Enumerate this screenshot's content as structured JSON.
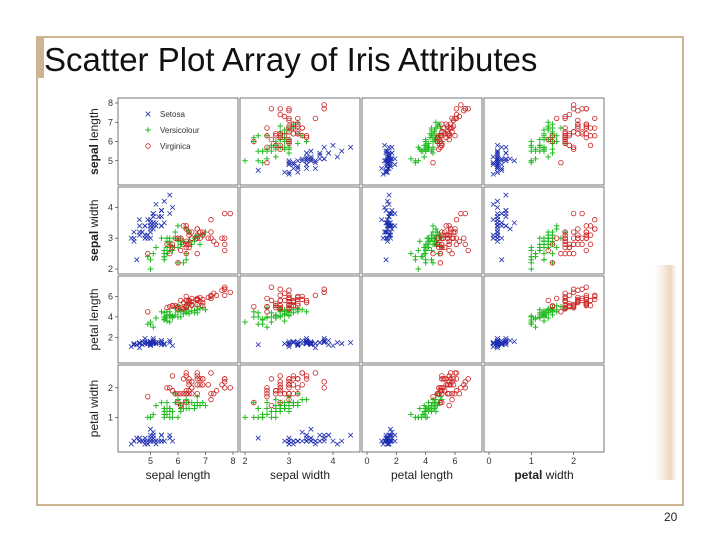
{
  "slide": {
    "title": "Scatter Plot Array of Iris Attributes",
    "page_number": "20"
  },
  "colors": {
    "setosa": "#1f2fb0",
    "versicolour": "#22bb22",
    "virginica": "#cc2222",
    "frame": "#cdb592"
  },
  "chart_data": {
    "type": "scatter",
    "attributes": [
      "sepal length",
      "sepal width",
      "petal length",
      "petal width"
    ],
    "bold_labels": [
      {
        "bold": "sepal",
        "rest": " length"
      },
      {
        "bold": "sepal",
        "rest": " width"
      },
      {
        "bold": "petal",
        "rest": " length"
      },
      {
        "bold": "petal",
        "rest": " width"
      }
    ],
    "ranges": [
      [
        4,
        8
      ],
      [
        2,
        4.5
      ],
      [
        0,
        7.5
      ],
      [
        0,
        2.6
      ]
    ],
    "ticks": {
      "x": [
        [
          {
            "v": 5,
            "t": "5"
          },
          {
            "v": 6,
            "t": "6"
          },
          {
            "v": 7,
            "t": "7"
          },
          {
            "v": 8,
            "t": "8"
          }
        ],
        [
          {
            "v": 2,
            "t": "2"
          },
          {
            "v": 3,
            "t": "3"
          },
          {
            "v": 4,
            "t": "4"
          }
        ],
        [
          {
            "v": 0,
            "t": "0"
          },
          {
            "v": 2,
            "t": "2"
          },
          {
            "v": 4,
            "t": "4"
          },
          {
            "v": 6,
            "t": "6"
          }
        ],
        [
          {
            "v": 0,
            "t": "0"
          },
          {
            "v": 1,
            "t": "1"
          },
          {
            "v": 2,
            "t": "2"
          }
        ]
      ],
      "y": [
        [
          {
            "v": 5,
            "t": "5"
          },
          {
            "v": 6,
            "t": "6"
          },
          {
            "v": 7,
            "t": "7"
          },
          {
            "v": 8,
            "t": "8"
          }
        ],
        [
          {
            "v": 2,
            "t": "2"
          },
          {
            "v": 3,
            "t": "3"
          },
          {
            "v": 4,
            "t": "4"
          }
        ],
        [
          {
            "v": 2,
            "t": "2"
          },
          {
            "v": 4,
            "t": "4"
          },
          {
            "v": 6,
            "t": "6"
          }
        ],
        [
          {
            "v": 1,
            "t": "1"
          },
          {
            "v": 2,
            "t": "2"
          }
        ]
      ]
    },
    "legend": [
      {
        "name": "Setosa",
        "marker": "x"
      },
      {
        "name": "Versicolour",
        "marker": "+"
      },
      {
        "name": "Virginica",
        "marker": "o"
      }
    ],
    "legend_position": "top-left",
    "grid": false,
    "series": [
      {
        "species": "setosa",
        "marker": "x",
        "points": [
          [
            5.1,
            3.5,
            1.4,
            0.2
          ],
          [
            4.9,
            3.0,
            1.4,
            0.2
          ],
          [
            4.7,
            3.2,
            1.3,
            0.2
          ],
          [
            4.6,
            3.1,
            1.5,
            0.2
          ],
          [
            5.0,
            3.6,
            1.4,
            0.2
          ],
          [
            5.4,
            3.9,
            1.7,
            0.4
          ],
          [
            4.6,
            3.4,
            1.4,
            0.3
          ],
          [
            5.0,
            3.4,
            1.5,
            0.2
          ],
          [
            4.4,
            2.9,
            1.4,
            0.2
          ],
          [
            4.9,
            3.1,
            1.5,
            0.1
          ],
          [
            5.4,
            3.7,
            1.5,
            0.2
          ],
          [
            4.8,
            3.4,
            1.6,
            0.2
          ],
          [
            4.8,
            3.0,
            1.4,
            0.1
          ],
          [
            4.3,
            3.0,
            1.1,
            0.1
          ],
          [
            5.8,
            4.0,
            1.2,
            0.2
          ],
          [
            5.7,
            4.4,
            1.5,
            0.4
          ],
          [
            5.4,
            3.9,
            1.3,
            0.4
          ],
          [
            5.1,
            3.5,
            1.4,
            0.3
          ],
          [
            5.7,
            3.8,
            1.7,
            0.3
          ],
          [
            5.1,
            3.8,
            1.5,
            0.3
          ],
          [
            5.4,
            3.4,
            1.7,
            0.2
          ],
          [
            5.1,
            3.7,
            1.5,
            0.4
          ],
          [
            4.6,
            3.6,
            1.0,
            0.2
          ],
          [
            5.1,
            3.3,
            1.7,
            0.5
          ],
          [
            4.8,
            3.4,
            1.9,
            0.2
          ],
          [
            5.0,
            3.0,
            1.6,
            0.2
          ],
          [
            5.0,
            3.4,
            1.6,
            0.4
          ],
          [
            5.2,
            3.5,
            1.5,
            0.2
          ],
          [
            5.2,
            3.4,
            1.4,
            0.2
          ],
          [
            4.7,
            3.2,
            1.6,
            0.2
          ],
          [
            4.8,
            3.1,
            1.6,
            0.2
          ],
          [
            5.4,
            3.4,
            1.5,
            0.4
          ],
          [
            5.2,
            4.1,
            1.5,
            0.1
          ],
          [
            5.5,
            4.2,
            1.4,
            0.2
          ],
          [
            4.9,
            3.1,
            1.5,
            0.2
          ],
          [
            5.0,
            3.2,
            1.2,
            0.2
          ],
          [
            5.5,
            3.5,
            1.3,
            0.2
          ],
          [
            4.9,
            3.6,
            1.4,
            0.1
          ],
          [
            4.4,
            3.0,
            1.3,
            0.2
          ],
          [
            5.1,
            3.4,
            1.5,
            0.2
          ],
          [
            5.0,
            3.5,
            1.3,
            0.3
          ],
          [
            4.5,
            2.3,
            1.3,
            0.3
          ],
          [
            4.4,
            3.2,
            1.3,
            0.2
          ],
          [
            5.0,
            3.5,
            1.6,
            0.6
          ],
          [
            5.1,
            3.8,
            1.9,
            0.4
          ],
          [
            4.8,
            3.0,
            1.4,
            0.3
          ],
          [
            5.1,
            3.8,
            1.6,
            0.2
          ],
          [
            4.6,
            3.2,
            1.4,
            0.2
          ],
          [
            5.3,
            3.7,
            1.5,
            0.2
          ],
          [
            5.0,
            3.3,
            1.4,
            0.2
          ]
        ]
      },
      {
        "species": "versicolour",
        "marker": "+",
        "points": [
          [
            7.0,
            3.2,
            4.7,
            1.4
          ],
          [
            6.4,
            3.2,
            4.5,
            1.5
          ],
          [
            6.9,
            3.1,
            4.9,
            1.5
          ],
          [
            5.5,
            2.3,
            4.0,
            1.3
          ],
          [
            6.5,
            2.8,
            4.6,
            1.5
          ],
          [
            5.7,
            2.8,
            4.5,
            1.3
          ],
          [
            6.3,
            3.3,
            4.7,
            1.6
          ],
          [
            4.9,
            2.4,
            3.3,
            1.0
          ],
          [
            6.6,
            2.9,
            4.6,
            1.3
          ],
          [
            5.2,
            2.7,
            3.9,
            1.4
          ],
          [
            5.0,
            2.0,
            3.5,
            1.0
          ],
          [
            5.9,
            3.0,
            4.2,
            1.5
          ],
          [
            6.0,
            2.2,
            4.0,
            1.0
          ],
          [
            6.1,
            2.9,
            4.7,
            1.4
          ],
          [
            5.6,
            2.9,
            3.6,
            1.3
          ],
          [
            6.7,
            3.1,
            4.4,
            1.4
          ],
          [
            5.6,
            3.0,
            4.5,
            1.5
          ],
          [
            5.8,
            2.7,
            4.1,
            1.0
          ],
          [
            6.2,
            2.2,
            4.5,
            1.5
          ],
          [
            5.6,
            2.5,
            3.9,
            1.1
          ],
          [
            5.9,
            3.2,
            4.8,
            1.8
          ],
          [
            6.1,
            2.8,
            4.0,
            1.3
          ],
          [
            6.3,
            2.5,
            4.9,
            1.5
          ],
          [
            6.1,
            2.8,
            4.7,
            1.2
          ],
          [
            6.4,
            2.9,
            4.3,
            1.3
          ],
          [
            6.6,
            3.0,
            4.4,
            1.4
          ],
          [
            6.8,
            2.8,
            4.8,
            1.4
          ],
          [
            6.7,
            3.0,
            5.0,
            1.7
          ],
          [
            6.0,
            2.9,
            4.5,
            1.5
          ],
          [
            5.7,
            2.6,
            3.5,
            1.0
          ],
          [
            5.5,
            2.4,
            3.8,
            1.1
          ],
          [
            5.5,
            2.4,
            3.7,
            1.0
          ],
          [
            5.8,
            2.7,
            3.9,
            1.2
          ],
          [
            6.0,
            2.7,
            5.1,
            1.6
          ],
          [
            5.4,
            3.0,
            4.5,
            1.5
          ],
          [
            6.0,
            3.4,
            4.5,
            1.6
          ],
          [
            6.7,
            3.1,
            4.7,
            1.5
          ],
          [
            6.3,
            2.3,
            4.4,
            1.3
          ],
          [
            5.6,
            3.0,
            4.1,
            1.3
          ],
          [
            5.5,
            2.5,
            4.0,
            1.3
          ],
          [
            5.5,
            2.6,
            4.4,
            1.2
          ],
          [
            6.1,
            3.0,
            4.6,
            1.4
          ],
          [
            5.8,
            2.6,
            4.0,
            1.2
          ],
          [
            5.0,
            2.3,
            3.3,
            1.0
          ],
          [
            5.6,
            2.7,
            4.2,
            1.3
          ],
          [
            5.7,
            3.0,
            4.2,
            1.2
          ],
          [
            5.7,
            2.9,
            4.2,
            1.3
          ],
          [
            6.2,
            2.9,
            4.3,
            1.3
          ],
          [
            5.1,
            2.5,
            3.0,
            1.1
          ],
          [
            5.7,
            2.8,
            4.1,
            1.3
          ]
        ]
      },
      {
        "species": "virginica",
        "marker": "o",
        "points": [
          [
            6.3,
            3.3,
            6.0,
            2.5
          ],
          [
            5.8,
            2.7,
            5.1,
            1.9
          ],
          [
            7.1,
            3.0,
            5.9,
            2.1
          ],
          [
            6.3,
            2.9,
            5.6,
            1.8
          ],
          [
            6.5,
            3.0,
            5.8,
            2.2
          ],
          [
            7.6,
            3.0,
            6.6,
            2.1
          ],
          [
            4.9,
            2.5,
            4.5,
            1.7
          ],
          [
            7.3,
            2.9,
            6.3,
            1.8
          ],
          [
            6.7,
            2.5,
            5.8,
            1.8
          ],
          [
            7.2,
            3.6,
            6.1,
            2.5
          ],
          [
            6.5,
            3.2,
            5.1,
            2.0
          ],
          [
            6.4,
            2.7,
            5.3,
            1.9
          ],
          [
            6.8,
            3.0,
            5.5,
            2.1
          ],
          [
            5.7,
            2.5,
            5.0,
            2.0
          ],
          [
            5.8,
            2.8,
            5.1,
            2.4
          ],
          [
            6.4,
            3.2,
            5.3,
            2.3
          ],
          [
            6.5,
            3.0,
            5.5,
            1.8
          ],
          [
            7.7,
            3.8,
            6.7,
            2.2
          ],
          [
            7.7,
            2.6,
            6.9,
            2.3
          ],
          [
            6.0,
            2.2,
            5.0,
            1.5
          ],
          [
            6.9,
            3.2,
            5.7,
            2.3
          ],
          [
            5.6,
            2.8,
            4.9,
            2.0
          ],
          [
            7.7,
            2.8,
            6.7,
            2.0
          ],
          [
            6.3,
            2.7,
            4.9,
            1.8
          ],
          [
            6.7,
            3.3,
            5.7,
            2.1
          ],
          [
            7.2,
            3.2,
            6.0,
            1.8
          ],
          [
            6.2,
            2.8,
            4.8,
            1.8
          ],
          [
            6.1,
            3.0,
            4.9,
            1.8
          ],
          [
            6.4,
            2.8,
            5.6,
            2.1
          ],
          [
            7.2,
            3.0,
            5.8,
            1.6
          ],
          [
            7.4,
            2.8,
            6.1,
            1.9
          ],
          [
            7.9,
            3.8,
            6.4,
            2.0
          ],
          [
            6.4,
            2.8,
            5.6,
            2.2
          ],
          [
            6.3,
            2.8,
            5.1,
            1.5
          ],
          [
            6.1,
            2.6,
            5.6,
            1.4
          ],
          [
            7.7,
            3.0,
            6.1,
            2.3
          ],
          [
            6.3,
            3.4,
            5.6,
            2.4
          ],
          [
            6.4,
            3.1,
            5.5,
            1.8
          ],
          [
            6.0,
            3.0,
            4.8,
            1.8
          ],
          [
            6.9,
            3.1,
            5.4,
            2.1
          ],
          [
            6.7,
            3.1,
            5.6,
            2.4
          ],
          [
            6.9,
            3.1,
            5.1,
            2.3
          ],
          [
            5.8,
            2.7,
            5.1,
            1.9
          ],
          [
            6.8,
            3.2,
            5.9,
            2.3
          ],
          [
            6.7,
            3.3,
            5.7,
            2.5
          ],
          [
            6.7,
            3.0,
            5.2,
            2.3
          ],
          [
            6.3,
            2.5,
            5.0,
            1.9
          ],
          [
            6.5,
            3.0,
            5.2,
            2.0
          ],
          [
            6.2,
            3.4,
            5.4,
            2.3
          ],
          [
            5.9,
            3.0,
            5.1,
            1.8
          ]
        ]
      }
    ]
  }
}
